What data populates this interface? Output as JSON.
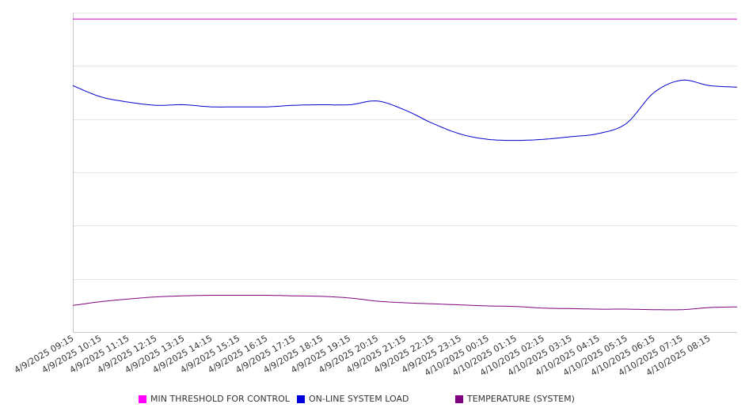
{
  "chart_data": {
    "type": "line",
    "title": "",
    "xlabel": "",
    "ylabel": "",
    "x": [
      "4/9/2025 09:15",
      "4/9/2025 10:15",
      "4/9/2025 11:15",
      "4/9/2025 12:15",
      "4/9/2025 13:15",
      "4/9/2025 14:15",
      "4/9/2025 15:15",
      "4/9/2025 16:15",
      "4/9/2025 17:15",
      "4/9/2025 18:15",
      "4/9/2025 19:15",
      "4/9/2025 20:15",
      "4/9/2025 21:15",
      "4/9/2025 22:15",
      "4/9/2025 23:15",
      "4/10/2025 00:15",
      "4/10/2025 01:15",
      "4/10/2025 02:15",
      "4/10/2025 03:15",
      "4/10/2025 04:15",
      "4/10/2025 05:15",
      "4/10/2025 06:15",
      "4/10/2025 07:15",
      "4/10/2025 08:15"
    ],
    "x_ticks": [
      "4/9/2025 09:15",
      "4/9/2025 10:15",
      "4/9/2025 11:15",
      "4/9/2025 12:15",
      "4/9/2025 13:15",
      "4/9/2025 14:15",
      "4/9/2025 15:15",
      "4/9/2025 16:15",
      "4/9/2025 17:15",
      "4/9/2025 18:15",
      "4/9/2025 19:15",
      "4/9/2025 20:15",
      "4/9/2025 21:15",
      "4/9/2025 22:15",
      "4/9/2025 23:15",
      "4/10/2025 00:15",
      "4/10/2025 01:15",
      "4/10/2025 02:15",
      "4/10/2025 03:15",
      "4/10/2025 04:15",
      "4/10/2025 05:15",
      "4/10/2025 06:15",
      "4/10/2025 07:15",
      "4/10/2025 08:15"
    ],
    "ylim": [
      0,
      6
    ],
    "y_gridlines": [
      0,
      1,
      2,
      3,
      4,
      5,
      6
    ],
    "grid": true,
    "legend_position": "bottom",
    "series": [
      {
        "name": "MIN THRESHOLD FOR CONTROL",
        "color": "#cc00cc",
        "values": [
          5.88,
          5.88,
          5.88,
          5.88,
          5.88,
          5.88,
          5.88,
          5.88,
          5.88,
          5.88,
          5.88,
          5.88,
          5.88,
          5.88,
          5.88,
          5.88,
          5.88,
          5.88,
          5.88,
          5.88,
          5.88,
          5.88,
          5.88,
          5.88
        ]
      },
      {
        "name": "ON-LINE SYSTEM LOAD",
        "color": "#0000cc",
        "values": [
          4.63,
          4.42,
          4.32,
          4.26,
          4.27,
          4.23,
          4.23,
          4.23,
          4.26,
          4.27,
          4.27,
          4.34,
          4.17,
          3.92,
          3.72,
          3.62,
          3.6,
          3.62,
          3.67,
          3.73,
          3.92,
          4.5,
          4.73,
          4.63
        ]
      },
      {
        "name": "TEMPERATURE (SYSTEM)",
        "color": "#800080",
        "values": [
          0.5,
          0.57,
          0.62,
          0.66,
          0.68,
          0.69,
          0.69,
          0.69,
          0.68,
          0.67,
          0.64,
          0.58,
          0.55,
          0.53,
          0.51,
          0.49,
          0.48,
          0.45,
          0.44,
          0.43,
          0.43,
          0.42,
          0.42,
          0.46
        ]
      }
    ]
  }
}
